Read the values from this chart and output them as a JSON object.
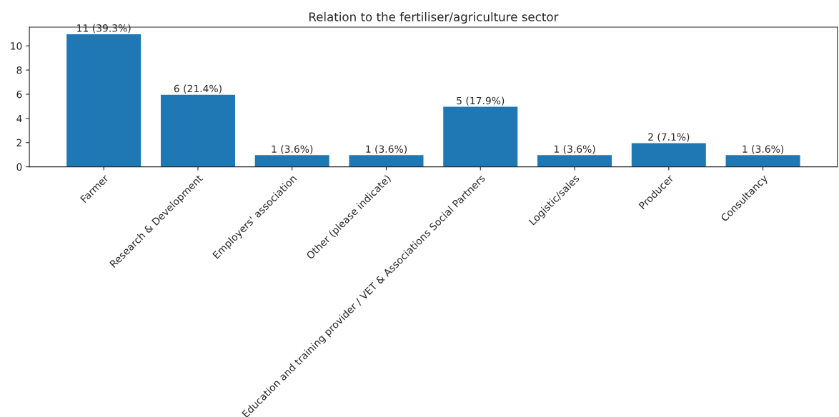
{
  "chart_data": {
    "type": "bar",
    "title": "Relation to the fertiliser/agriculture sector",
    "categories": [
      "Farmer",
      "Research & Development",
      "Employers' association",
      "Other (please indicate)",
      "Education and training provider / VET & Associations Social Partners",
      "Logistic/sales",
      "Producer",
      "Consultancy"
    ],
    "values": [
      11,
      6,
      1,
      1,
      5,
      1,
      2,
      1
    ],
    "value_labels": [
      "11 (39.3%)",
      "6 (21.4%)",
      "1 (3.6%)",
      "1 (3.6%)",
      "5 (17.9%)",
      "1 (3.6%)",
      "2 (7.1%)",
      "1 (3.6%)"
    ],
    "color": "#1f77b4",
    "ylim": [
      0,
      11.55
    ],
    "yticks": [
      0,
      2,
      4,
      6,
      8,
      10
    ],
    "grid": false,
    "legend": false
  }
}
